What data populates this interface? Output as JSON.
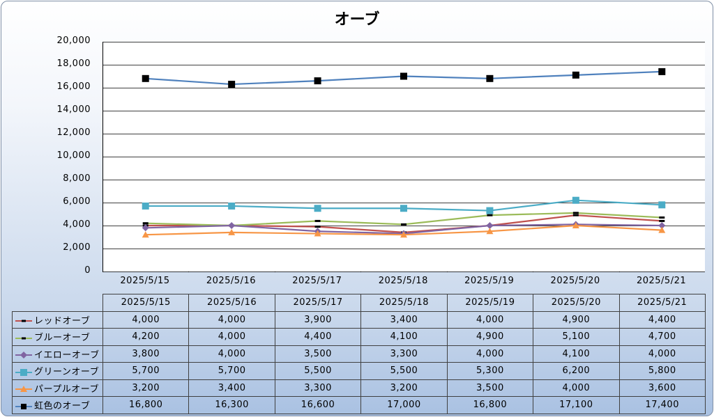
{
  "chart_data": {
    "type": "line",
    "title": "オーブ",
    "categories": [
      "2025/5/15",
      "2025/5/16",
      "2025/5/17",
      "2025/5/18",
      "2025/5/19",
      "2025/5/20",
      "2025/5/21"
    ],
    "y_ticks": [
      "0",
      "2,000",
      "4,000",
      "6,000",
      "8,000",
      "10,000",
      "12,000",
      "14,000",
      "16,000",
      "18,000",
      "20,000"
    ],
    "ylim": [
      0,
      20000
    ],
    "grid": true,
    "series": [
      {
        "name": "レッドオーブ",
        "values": [
          4000,
          4000,
          3900,
          3400,
          4000,
          4900,
          4400
        ],
        "labels": [
          "4,000",
          "4,000",
          "3,900",
          "3,400",
          "4,000",
          "4,900",
          "4,400"
        ],
        "color": "#c0504d",
        "marker": "dash"
      },
      {
        "name": "ブルーオーブ",
        "values": [
          4200,
          4000,
          4400,
          4100,
          4900,
          5100,
          4700
        ],
        "labels": [
          "4,200",
          "4,000",
          "4,400",
          "4,100",
          "4,900",
          "5,100",
          "4,700"
        ],
        "color": "#9bbb59",
        "marker": "dash"
      },
      {
        "name": "イエローオーブ",
        "values": [
          3800,
          4000,
          3500,
          3300,
          4000,
          4100,
          4000
        ],
        "labels": [
          "3,800",
          "4,000",
          "3,500",
          "3,300",
          "4,000",
          "4,100",
          "4,000"
        ],
        "color": "#8064a2",
        "marker": "diamond"
      },
      {
        "name": "グリーンオーブ",
        "values": [
          5700,
          5700,
          5500,
          5500,
          5300,
          6200,
          5800
        ],
        "labels": [
          "5,700",
          "5,700",
          "5,500",
          "5,500",
          "5,300",
          "6,200",
          "5,800"
        ],
        "color": "#4bacc6",
        "marker": "square"
      },
      {
        "name": "パープルオーブ",
        "values": [
          3200,
          3400,
          3300,
          3200,
          3500,
          4000,
          3600
        ],
        "labels": [
          "3,200",
          "3,400",
          "3,300",
          "3,200",
          "3,500",
          "4,000",
          "3,600"
        ],
        "color": "#f79646",
        "marker": "triangle"
      },
      {
        "name": "虹色のオーブ",
        "values": [
          16800,
          16300,
          16600,
          17000,
          16800,
          17100,
          17400
        ],
        "labels": [
          "16,800",
          "16,300",
          "16,600",
          "17,000",
          "16,800",
          "17,100",
          "17,400"
        ],
        "color": "#4f81bd",
        "marker": "square-black"
      }
    ]
  }
}
